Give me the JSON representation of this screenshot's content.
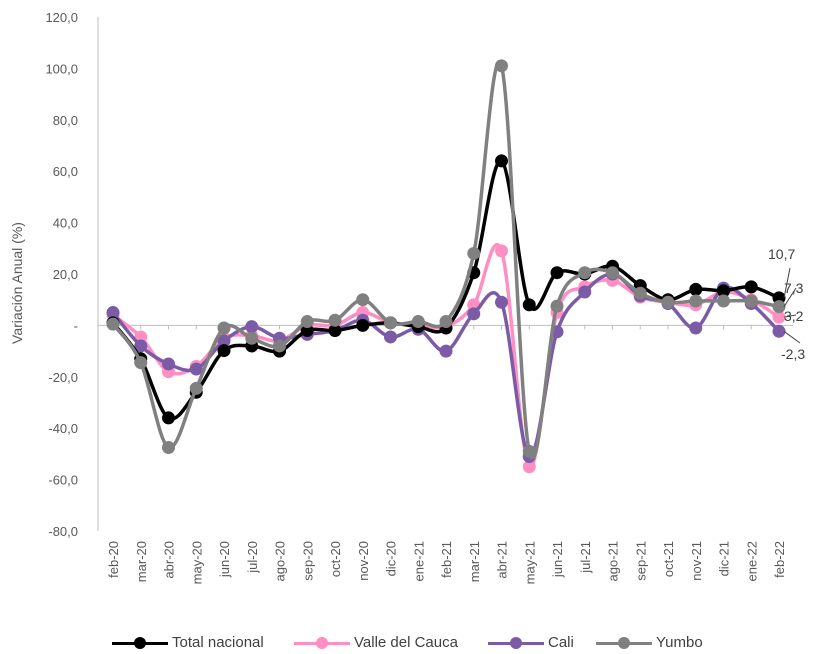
{
  "chart_data": {
    "type": "line",
    "title": "",
    "xlabel": "",
    "ylabel": "Variación Anual (%)",
    "ylim": [
      -80,
      120
    ],
    "yticks": [
      "120,0",
      "100,0",
      "80,0",
      "60,0",
      "40,0",
      "20,0",
      "-",
      "-20,0",
      "-40,0",
      "-60,0",
      "-80,0"
    ],
    "ytick_values": [
      120,
      100,
      80,
      60,
      40,
      20,
      0,
      -20,
      -40,
      -60,
      -80
    ],
    "categories": [
      "feb-20",
      "mar-20",
      "abr-20",
      "may-20",
      "jun-20",
      "jul-20",
      "ago-20",
      "sep-20",
      "oct-20",
      "nov-20",
      "dic-20",
      "ene-21",
      "feb-21",
      "mar-21",
      "abr-21",
      "may-21",
      "jun-21",
      "jul-21",
      "ago-21",
      "sep-21",
      "oct-21",
      "nov-21",
      "dic-21",
      "ene-22",
      "feb-22"
    ],
    "grid": false,
    "legend_position": "bottom",
    "series": [
      {
        "name": "Total nacional",
        "color": "#000000",
        "values": [
          1.0,
          -13.0,
          -36.0,
          -26.0,
          -9.8,
          -8.0,
          -10.0,
          -2.0,
          -2.0,
          0.0,
          1.0,
          -0.5,
          -1.0,
          20.5,
          64.0,
          8.0,
          20.5,
          20.0,
          23.0,
          15.5,
          10.0,
          14.0,
          13.5,
          15.0,
          10.7
        ]
      },
      {
        "name": "Valle del Cauca",
        "color": "#FF8EC3",
        "values": [
          4.0,
          -4.5,
          -18.0,
          -16.0,
          -5.0,
          -4.0,
          -6.0,
          0.0,
          0.0,
          5.0,
          1.0,
          0.0,
          -0.5,
          8.0,
          29.0,
          -55.0,
          5.0,
          15.0,
          17.5,
          11.0,
          9.0,
          8.0,
          13.0,
          10.0,
          3.2
        ]
      },
      {
        "name": "Cali",
        "color": "#7B5BA6",
        "values": [
          5.0,
          -8.0,
          -15.0,
          -17.0,
          -6.0,
          -0.5,
          -5.0,
          -3.5,
          -2.0,
          2.0,
          -4.5,
          -1.5,
          -10.0,
          4.5,
          9.0,
          -51.0,
          -2.5,
          13.0,
          20.0,
          11.5,
          8.5,
          -1.0,
          14.5,
          8.5,
          -2.3
        ]
      },
      {
        "name": "Yumbo",
        "color": "#808080",
        "values": [
          0.5,
          -14.5,
          -47.5,
          -24.5,
          -1.0,
          -5.0,
          -8.0,
          1.5,
          2.0,
          10.0,
          1.0,
          1.5,
          1.5,
          28.0,
          101.0,
          -49.0,
          7.5,
          20.5,
          20.5,
          12.5,
          9.0,
          9.5,
          9.5,
          9.5,
          7.3
        ]
      }
    ],
    "end_labels": [
      "10,7",
      "7,3",
      "3,2",
      "-2,3"
    ]
  },
  "legend": {
    "items": [
      "Total nacional",
      "Valle del Cauca",
      "Cali",
      "Yumbo"
    ]
  }
}
